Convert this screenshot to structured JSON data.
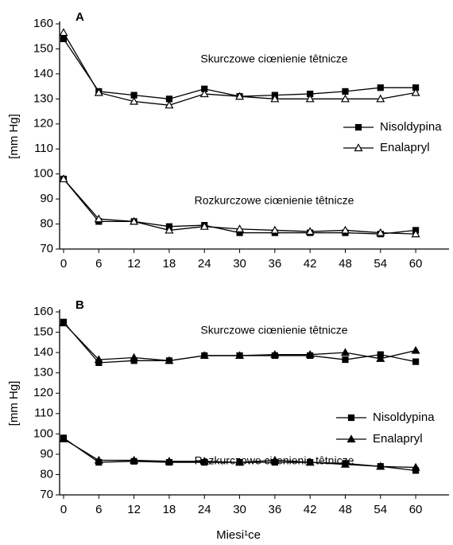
{
  "chart_data": [
    {
      "type": "line",
      "title": "A",
      "ylabel": "[mm Hg]",
      "annotations": [
        "Skurczowe ciœnienie têtnicze",
        "Rozkurczowe ciœnienie têtnicze"
      ],
      "x": [
        0,
        6,
        12,
        18,
        24,
        30,
        36,
        42,
        48,
        54,
        60
      ],
      "xlim": [
        0,
        65
      ],
      "xticks": [
        0,
        6,
        12,
        18,
        24,
        30,
        36,
        42,
        48,
        54,
        60
      ],
      "ylim": [
        70,
        160
      ],
      "yticks": [
        70,
        80,
        90,
        100,
        110,
        120,
        130,
        140,
        150,
        160
      ],
      "legend": "right",
      "series": [
        {
          "name": "Nisoldypina",
          "color": "#000000",
          "marker": "square",
          "filled": true,
          "values": [
            154,
            133,
            131.5,
            130,
            134,
            131,
            131.5,
            132,
            133,
            134.5,
            134.5
          ]
        },
        {
          "name": "Enalapryl",
          "color": "#000000",
          "marker": "triangle",
          "filled": false,
          "values": [
            156.5,
            132.5,
            129,
            127.5,
            132,
            131,
            130,
            130,
            130,
            130,
            132.5
          ]
        },
        {
          "name": "Nisoldypina",
          "color": "#000000",
          "marker": "square",
          "filled": true,
          "values": [
            98,
            81,
            81,
            79,
            79.5,
            76.5,
            76.5,
            76.5,
            76.5,
            76,
            77.5
          ]
        },
        {
          "name": "Enalapryl",
          "color": "#000000",
          "marker": "triangle",
          "filled": false,
          "values": [
            98,
            82,
            81,
            77.5,
            79,
            78,
            77.5,
            77,
            77.5,
            76.5,
            76
          ]
        }
      ]
    },
    {
      "type": "line",
      "title": "B",
      "ylabel": "[mm Hg]",
      "xlabel": "Miesi¹ce",
      "annotations": [
        "Skurczowe ciœnienie têtnicze",
        "Rozkurczowe ciœnienie têtnicze"
      ],
      "x": [
        0,
        6,
        12,
        18,
        24,
        30,
        36,
        42,
        48,
        54,
        60
      ],
      "xlim": [
        0,
        65
      ],
      "xticks": [
        0,
        6,
        12,
        18,
        24,
        30,
        36,
        42,
        48,
        54,
        60
      ],
      "ylim": [
        70,
        160
      ],
      "yticks": [
        70,
        80,
        90,
        100,
        110,
        120,
        130,
        140,
        150,
        160
      ],
      "legend": "right",
      "series": [
        {
          "name": "Nisoldypina",
          "color": "#000000",
          "marker": "square",
          "filled": true,
          "values": [
            155,
            135,
            136,
            136,
            138.5,
            138.5,
            138.5,
            138.5,
            136.5,
            139,
            135.5
          ]
        },
        {
          "name": "Enalapryl",
          "color": "#000000",
          "marker": "triangle",
          "filled": true,
          "values": [
            154.5,
            136.5,
            137.5,
            136,
            138.5,
            138.5,
            139,
            139,
            140,
            137,
            141
          ]
        },
        {
          "name": "Nisoldypina",
          "color": "#000000",
          "marker": "square",
          "filled": true,
          "values": [
            98,
            86,
            86.5,
            86,
            86,
            86,
            86,
            86,
            85.5,
            84,
            82
          ]
        },
        {
          "name": "Enalapryl",
          "color": "#000000",
          "marker": "triangle",
          "filled": true,
          "values": [
            97.5,
            87,
            87,
            86.5,
            86.5,
            86,
            87,
            86,
            85,
            84,
            83.5
          ]
        }
      ]
    }
  ]
}
